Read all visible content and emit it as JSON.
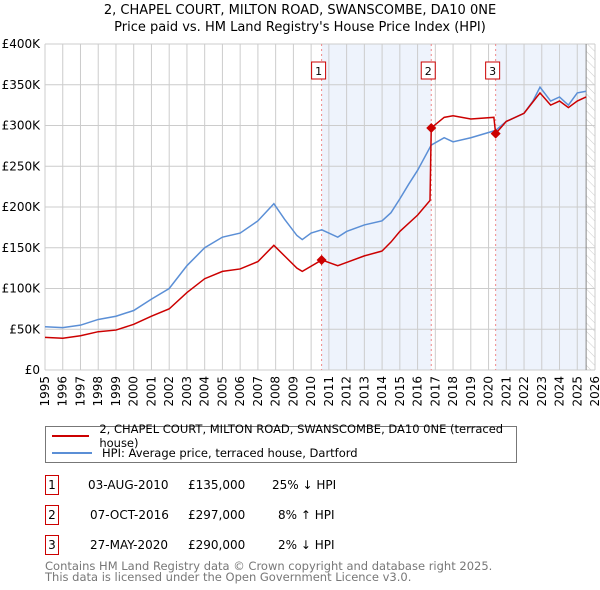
{
  "header": {
    "title": "2, CHAPEL COURT, MILTON ROAD, SWANSCOMBE, DA10 0NE",
    "subtitle": "Price paid vs. HM Land Registry's House Price Index (HPI)"
  },
  "chart_data": {
    "type": "line",
    "title": "2, CHAPEL COURT, MILTON ROAD, SWANSCOMBE, DA10 0NE",
    "subtitle": "Price paid vs. HM Land Registry's House Price Index (HPI)",
    "xlim": [
      1995,
      2026
    ],
    "ylim": [
      0,
      400000
    ],
    "x_ticks": [
      "1995",
      "1996",
      "1997",
      "1998",
      "1999",
      "2000",
      "2001",
      "2002",
      "2003",
      "2004",
      "2005",
      "2006",
      "2007",
      "2008",
      "2009",
      "2010",
      "2011",
      "2012",
      "2013",
      "2014",
      "2015",
      "2016",
      "2017",
      "2018",
      "2019",
      "2020",
      "2021",
      "2022",
      "2023",
      "2024",
      "2025",
      "2026"
    ],
    "y_ticks": [
      {
        "v": 0,
        "label": "£0"
      },
      {
        "v": 50000,
        "label": "£50K"
      },
      {
        "v": 100000,
        "label": "£100K"
      },
      {
        "v": 150000,
        "label": "£150K"
      },
      {
        "v": 200000,
        "label": "£200K"
      },
      {
        "v": 250000,
        "label": "£250K"
      },
      {
        "v": 300000,
        "label": "£300K"
      },
      {
        "v": 350000,
        "label": "£350K"
      },
      {
        "v": 400000,
        "label": "£400K"
      }
    ],
    "grid": true,
    "series": [
      {
        "name": "2, CHAPEL COURT, MILTON ROAD, SWANSCOMBE, DA10 0NE (terraced house)",
        "color": "#cc0000",
        "x": [
          1995,
          1996,
          1997,
          1998,
          1999,
          2000,
          2001,
          2002,
          2003,
          2004,
          2005,
          2006,
          2007,
          2007.9,
          2008.5,
          2009.2,
          2009.5,
          2010.6,
          2011.5,
          2012,
          2013,
          2014,
          2014.5,
          2015,
          2016,
          2016.7,
          2016.77,
          2017.5,
          2018,
          2019,
          2020.3,
          2020.4,
          2021,
          2022,
          2022.9,
          2023.5,
          2024,
          2024.5,
          2025,
          2025.5
        ],
        "y": [
          40000,
          39000,
          42000,
          47000,
          49000,
          56000,
          66000,
          75000,
          95000,
          112000,
          121000,
          124000,
          133000,
          153000,
          140000,
          125000,
          121000,
          135000,
          128000,
          132000,
          140000,
          146000,
          157000,
          170000,
          190000,
          208000,
          297000,
          310000,
          312000,
          308000,
          310000,
          290000,
          305000,
          315000,
          340000,
          325000,
          330000,
          322000,
          330000,
          335000
        ]
      },
      {
        "name": "HPI: Average price, terraced house, Dartford",
        "color": "#5b8fd6",
        "x": [
          1995,
          1996,
          1997,
          1998,
          1999,
          2000,
          2001,
          2002,
          2003,
          2004,
          2005,
          2006,
          2007,
          2007.9,
          2008.5,
          2009.2,
          2009.5,
          2010,
          2010.6,
          2011.5,
          2012,
          2013,
          2014,
          2014.5,
          2015,
          2015.5,
          2016,
          2016.77,
          2017.5,
          2018,
          2019,
          2020.4,
          2021,
          2022,
          2022.5,
          2022.9,
          2023.5,
          2024,
          2024.5,
          2025,
          2025.5
        ],
        "y": [
          53000,
          52000,
          55000,
          62000,
          66000,
          73000,
          87000,
          100000,
          128000,
          150000,
          163000,
          168000,
          183000,
          204000,
          185000,
          165000,
          160000,
          168000,
          172000,
          163000,
          170000,
          178000,
          183000,
          193000,
          210000,
          228000,
          245000,
          276000,
          285000,
          280000,
          285000,
          294000,
          305000,
          315000,
          330000,
          347000,
          330000,
          335000,
          325000,
          340000,
          342000
        ]
      }
    ],
    "sales": [
      {
        "n": "1",
        "x": 2010.59,
        "price": 135000,
        "date": "03-AUG-2010",
        "price_label": "£135,000",
        "hpi": "25% ↓ HPI"
      },
      {
        "n": "2",
        "x": 2016.77,
        "price": 297000,
        "date": "07-OCT-2016",
        "price_label": "£297,000",
        "hpi": "8% ↑ HPI"
      },
      {
        "n": "3",
        "x": 2020.4,
        "price": 290000,
        "date": "27-MAY-2020",
        "price_label": "£290,000",
        "hpi": "2% ↓ HPI"
      }
    ],
    "legend_placement": "below"
  },
  "legend": {
    "red": "2, CHAPEL COURT, MILTON ROAD, SWANSCOMBE, DA10 0NE (terraced house)",
    "blue": "HPI: Average price, terraced house, Dartford"
  },
  "footer": {
    "line1": "Contains HM Land Registry data © Crown copyright and database right 2025.",
    "line2": "This data is licensed under the Open Government Licence v3.0."
  }
}
